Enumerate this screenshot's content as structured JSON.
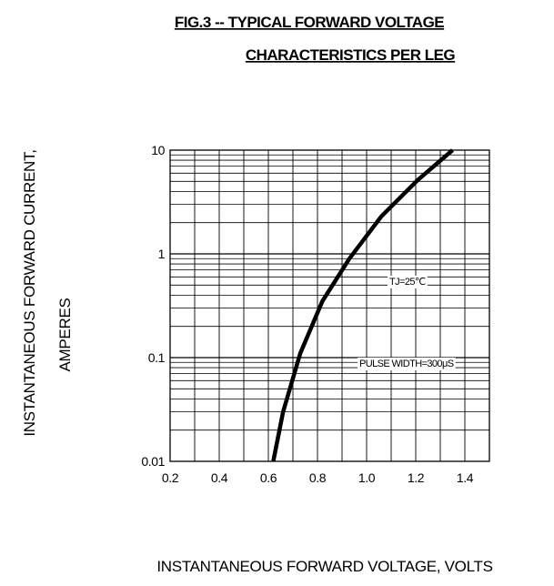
{
  "chart_data": {
    "type": "line",
    "title_line1": "FIG.3 -- TYPICAL FORWARD VOLTAGE",
    "title_line2": "CHARACTERISTICS PER LEG",
    "xlabel": "INSTANTANEOUS FORWARD VOLTAGE,  VOLTS",
    "ylabel_line1": "INSTANTANEOUS FORWARD CURRENT,",
    "ylabel_line2": "AMPERES",
    "xlim": [
      0.2,
      1.5
    ],
    "ylim": [
      0.01,
      10
    ],
    "y_scale": "log",
    "grid": true,
    "x_ticks": [
      "0.2",
      "0.4",
      "0.6",
      "0.8",
      "1.0",
      "1.2",
      "1.4"
    ],
    "y_ticks": [
      "0.01",
      "0.1",
      "1",
      "10"
    ],
    "annotations": [
      "TJ=25℃",
      "PULSE WIDTH=300μS"
    ],
    "series": [
      {
        "x": [
          0.62,
          0.66,
          0.73,
          0.82,
          0.93,
          1.06,
          1.21,
          1.35
        ],
        "y": [
          0.01,
          0.03,
          0.11,
          0.35,
          0.9,
          2.3,
          5.2,
          10
        ]
      }
    ]
  }
}
